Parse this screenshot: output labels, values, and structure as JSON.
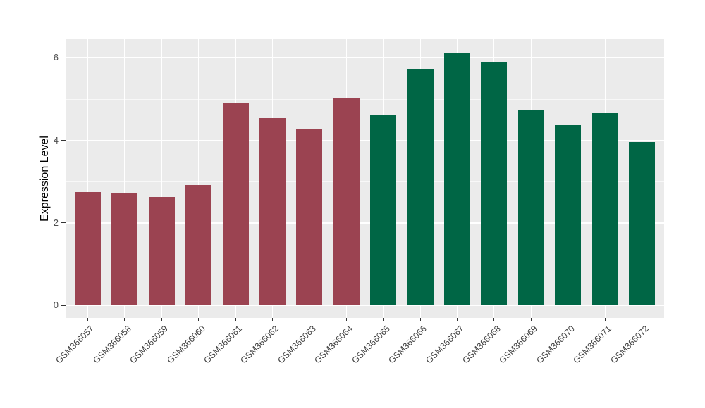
{
  "figure": {
    "background": "#FFFFFF",
    "panel_background": "#EBEBEB",
    "major_grid_color": "#FFFFFF",
    "axis_text_color": "#4D4D4D",
    "tick_mark_color": "#333333"
  },
  "chart_data": {
    "type": "bar",
    "title": "",
    "xlabel": "",
    "ylabel": "Expression Level",
    "categories": [
      "GSM366057",
      "GSM366058",
      "GSM366059",
      "GSM366060",
      "GSM366061",
      "GSM366062",
      "GSM366063",
      "GSM366064",
      "GSM366065",
      "GSM366066",
      "GSM366067",
      "GSM366068",
      "GSM366069",
      "GSM366070",
      "GSM366071",
      "GSM366072"
    ],
    "values": [
      2.75,
      2.73,
      2.63,
      2.92,
      4.89,
      4.54,
      4.28,
      5.04,
      4.6,
      5.73,
      6.12,
      5.9,
      4.72,
      4.38,
      4.68,
      3.96
    ],
    "bar_groups": [
      "maroon",
      "maroon",
      "maroon",
      "maroon",
      "maroon",
      "maroon",
      "maroon",
      "maroon",
      "green",
      "green",
      "green",
      "green",
      "green",
      "green",
      "green",
      "green"
    ],
    "group_colors": {
      "maroon": "#9B4351",
      "green": "#006645"
    },
    "yticks": [
      0,
      2,
      4,
      6
    ],
    "yticks_minor": [
      1,
      3,
      5
    ],
    "ylim": [
      -0.31,
      6.44
    ],
    "grid": "major-and-minor, white on gray panel",
    "legend": "none",
    "x_label_rotation_deg": 45
  }
}
